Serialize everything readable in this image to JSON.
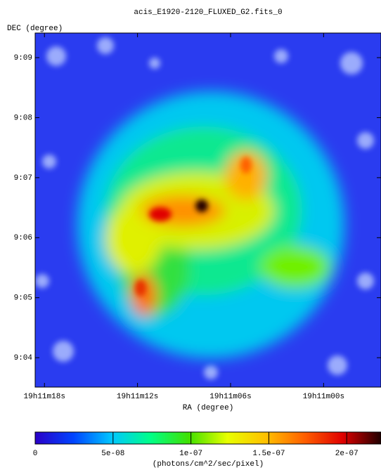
{
  "chart_data": {
    "type": "image",
    "title": "acis_E1920-2120_FLUXED_G2.fits_0",
    "xlabel": "RA (degree)",
    "ylabel": "DEC (degree)",
    "xlim": [
      69078.6,
      69056.3
    ],
    "xticks": [
      {
        "value": 69078,
        "label": "19h11m18s"
      },
      {
        "value": 69072,
        "label": "19h11m12s"
      },
      {
        "value": 69066,
        "label": "19h11m06s"
      },
      {
        "value": 69060,
        "label": "19h11m00s"
      }
    ],
    "ylim": [
      543.51,
      549.41
    ],
    "yticks": [
      {
        "value": 544,
        "label": "9:04"
      },
      {
        "value": 545,
        "label": "9:05"
      },
      {
        "value": 546,
        "label": "9:06"
      },
      {
        "value": 547,
        "label": "9:07"
      },
      {
        "value": 548,
        "label": "9:08"
      },
      {
        "value": 549,
        "label": "9:09"
      }
    ],
    "colorbar": {
      "label": "(photons/cm^2/sec/pixel)",
      "lim": [
        0,
        2.22e-07
      ],
      "ticks": [
        0,
        {
          "value": 5e-08,
          "label": "5e-08"
        },
        {
          "value": 1e-07,
          "label": "1e-07"
        },
        {
          "value": 1.5e-07,
          "label": "1.5e-07"
        },
        {
          "value": 2e-07,
          "label": "2e-07"
        }
      ],
      "colormap": [
        "#2a00c8",
        "#0044ff",
        "#00c8ff",
        "#00ff88",
        "#40e000",
        "#e8ff00",
        "#ffc000",
        "#ff6000",
        "#e00000",
        "#200000"
      ]
    }
  }
}
